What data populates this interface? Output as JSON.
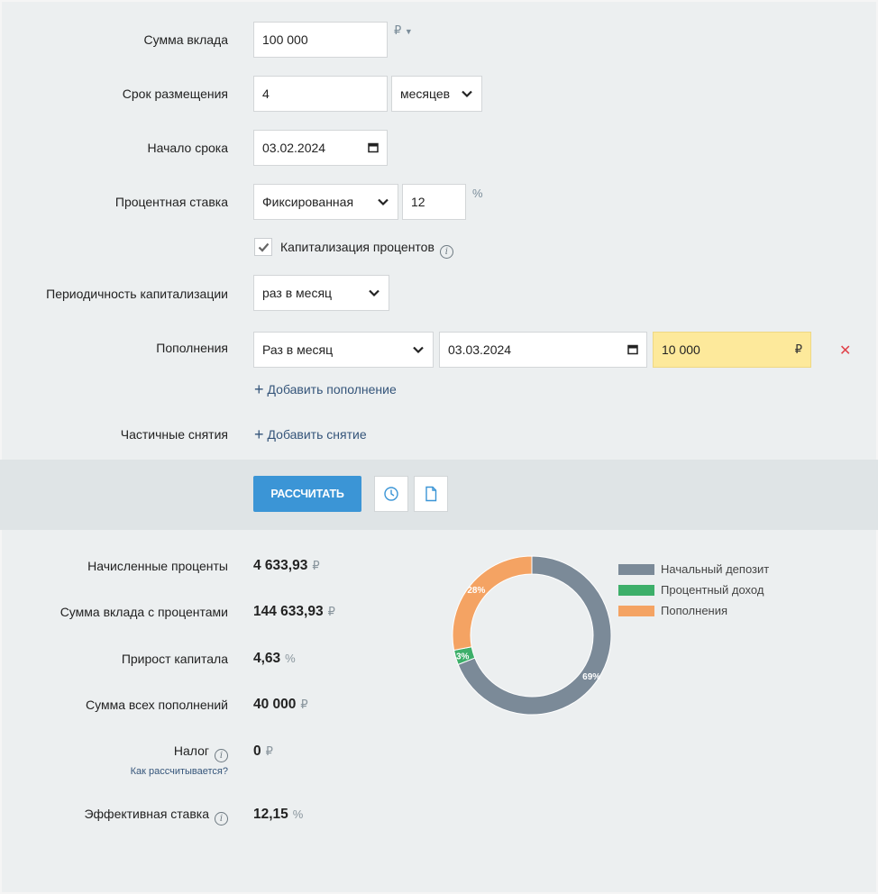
{
  "form": {
    "deposit_amount": {
      "label": "Сумма вклада",
      "value": "100 000",
      "currency": "₽"
    },
    "term": {
      "label": "Срок размещения",
      "value": "4",
      "unit": "месяцев"
    },
    "start": {
      "label": "Начало срока",
      "value": "03.02.2024"
    },
    "rate": {
      "label": "Процентная ставка",
      "type": "Фиксированная",
      "value": "12",
      "unit": "%"
    },
    "capitalization": {
      "label": "Капитализация процентов",
      "checked": true
    },
    "cap_period": {
      "label": "Периодичность капитализации",
      "value": "раз в месяц"
    },
    "replenish": {
      "label": "Пополнения",
      "period": "Раз в месяц",
      "date": "03.03.2024",
      "amount": "10 000",
      "currency": "₽",
      "add_label": "Добавить пополнение"
    },
    "withdraw": {
      "label": "Частичные снятия",
      "add_label": "Добавить снятие"
    }
  },
  "toolbar": {
    "calc_label": "РАССЧИТАТЬ"
  },
  "results": {
    "interest": {
      "label": "Начисленные проценты",
      "value": "4 633,93",
      "unit": "₽"
    },
    "total": {
      "label": "Сумма вклада с процентами",
      "value": "144 633,93",
      "unit": "₽"
    },
    "growth": {
      "label": "Прирост капитала",
      "value": "4,63",
      "unit": "%"
    },
    "replenish_sum": {
      "label": "Сумма всех пополнений",
      "value": "40 000",
      "unit": "₽"
    },
    "tax": {
      "label": "Налог",
      "value": "0",
      "unit": "₽",
      "note": "Как рассчитывается?"
    },
    "effective": {
      "label": "Эффективная ставка",
      "value": "12,15",
      "unit": "%"
    }
  },
  "chart_data": {
    "type": "pie",
    "categories": [
      "Начальный депозит",
      "Процентный доход",
      "Пополнения"
    ],
    "values": [
      69,
      3,
      28
    ],
    "labels": [
      "69%",
      "3%",
      "28%"
    ],
    "colors": [
      "#7b8a98",
      "#3daf6a",
      "#f4a363"
    ]
  }
}
